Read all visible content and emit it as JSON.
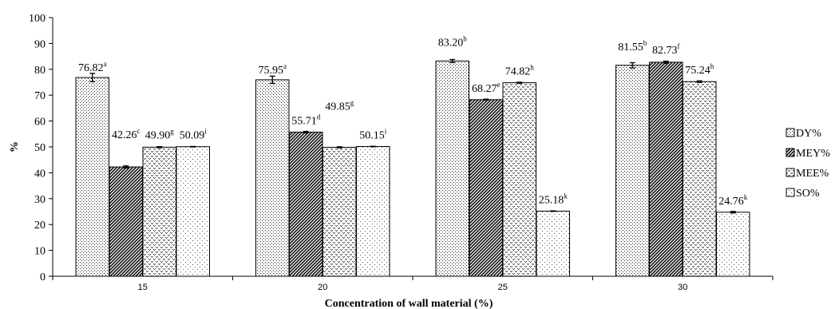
{
  "chart_data": {
    "type": "bar",
    "title": "",
    "xlabel": "Concentration of wall material (%)",
    "ylabel": "%",
    "ylim": [
      0,
      100
    ],
    "yticks": [
      "0",
      "10",
      "20",
      "30",
      "40",
      "50",
      "60",
      "70",
      "80",
      "90",
      "100"
    ],
    "categories": [
      "15",
      "20",
      "25",
      "30"
    ],
    "grid": false,
    "legend_position": "right",
    "series": [
      {
        "name": "DY%",
        "pattern": "dots-fine",
        "values": [
          76.82,
          75.95,
          83.2,
          81.55
        ],
        "errors": [
          1.6,
          1.4,
          0.6,
          1.0
        ],
        "labels": [
          "76.82",
          "75.95",
          "83.20",
          "81.55"
        ],
        "letters": [
          "a",
          "a",
          "b",
          "b"
        ]
      },
      {
        "name": "MEY%",
        "pattern": "diagonal-dense",
        "values": [
          42.26,
          55.71,
          68.27,
          82.73
        ],
        "errors": [
          0.4,
          0.3,
          0.2,
          0.4
        ],
        "labels": [
          "42.26",
          "55.71",
          "68.27",
          "82.73"
        ],
        "letters": [
          "c",
          "d",
          "e",
          "f"
        ]
      },
      {
        "name": "MEE%",
        "pattern": "cross-dots",
        "values": [
          49.9,
          49.85,
          74.82,
          75.24
        ],
        "errors": [
          0.2,
          0.2,
          0.2,
          0.3
        ],
        "labels": [
          "49.90",
          "49.85",
          "74.82",
          "75.24"
        ],
        "letters": [
          "g",
          "g",
          "h",
          "h"
        ]
      },
      {
        "name": "SO%",
        "pattern": "dots-sparse",
        "values": [
          50.09,
          50.15,
          25.18,
          24.76
        ],
        "errors": [
          0.1,
          0.1,
          0.1,
          0.3
        ],
        "labels": [
          "50.09",
          "50.15",
          "25.18",
          "24.76"
        ],
        "letters": [
          "i",
          "i",
          "k",
          "k"
        ]
      }
    ]
  }
}
